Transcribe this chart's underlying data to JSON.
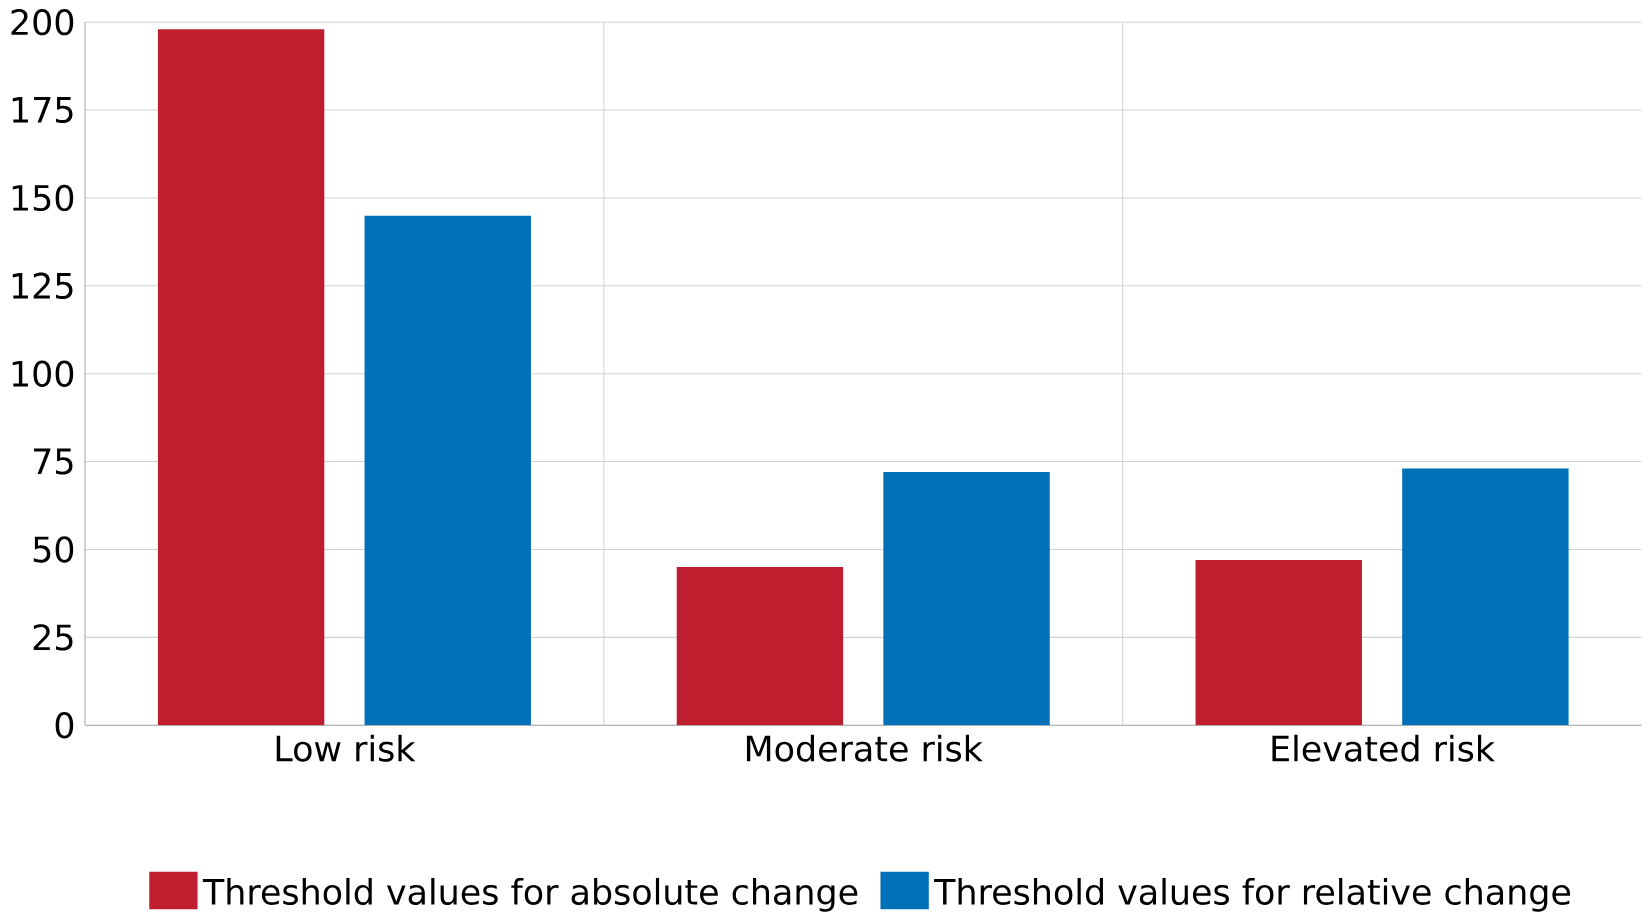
{
  "chart_data": {
    "type": "bar",
    "categories": [
      "Low risk",
      "Moderate risk",
      "Elevated risk"
    ],
    "series": [
      {
        "name": "Threshold values for absolute change",
        "color": "#be1e2d",
        "values": [
          198,
          45,
          47
        ]
      },
      {
        "name": "Threshold values for relative change",
        "color": "#0070b8",
        "values": [
          145,
          72,
          73
        ]
      }
    ],
    "ylim": [
      0,
      200
    ],
    "yticks": [
      0,
      25,
      50,
      75,
      100,
      125,
      150,
      175,
      200
    ],
    "grid": true,
    "legend": "bottom"
  }
}
